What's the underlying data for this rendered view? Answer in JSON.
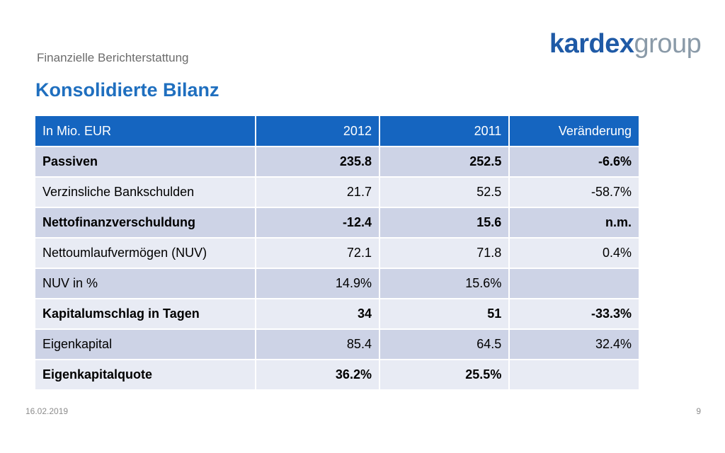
{
  "header": {
    "subtitle": "Finanzielle Berichterstattung",
    "title": "Konsolidierte Bilanz",
    "logo_strong": "kardex",
    "logo_light": "group"
  },
  "table": {
    "columns": [
      "In Mio. EUR",
      "2012",
      "2011",
      "Veränderung"
    ],
    "rows": [
      {
        "label": "Passiven",
        "v2012": "235.8",
        "v2011": "252.5",
        "change": "-6.6%",
        "bold": true
      },
      {
        "label": "Verzinsliche Bankschulden",
        "v2012": "21.7",
        "v2011": "52.5",
        "change": "-58.7%",
        "bold": false
      },
      {
        "label": "Nettofinanzverschuldung",
        "v2012": "-12.4",
        "v2011": "15.6",
        "change": "n.m.",
        "bold": true
      },
      {
        "label": "Nettoumlaufvermögen (NUV)",
        "v2012": "72.1",
        "v2011": "71.8",
        "change": "0.4%",
        "bold": false
      },
      {
        "label": "NUV in %",
        "v2012": "14.9%",
        "v2011": "15.6%",
        "change": "",
        "bold": false
      },
      {
        "label": "Kapitalumschlag in Tagen",
        "v2012": "34",
        "v2011": "51",
        "change": "-33.3%",
        "bold": true
      },
      {
        "label": "Eigenkapital",
        "v2012": "85.4",
        "v2011": "64.5",
        "change": "32.4%",
        "bold": false
      },
      {
        "label": "Eigenkapitalquote",
        "v2012": "36.2%",
        "v2011": "25.5%",
        "change": "",
        "bold": true
      }
    ]
  },
  "footer": {
    "date": "16.02.2019",
    "page": "9"
  },
  "colors": {
    "title": "#1f6fbf",
    "header_bg": "#1565c0",
    "row_dark": "#cdd3e6",
    "row_light": "#e8ebf4"
  }
}
